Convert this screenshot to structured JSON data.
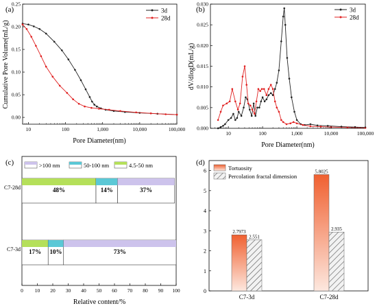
{
  "chart_data": [
    {
      "panel": "(a)",
      "type": "line",
      "xlabel": "Pore Diameter(nm)",
      "ylabel": "Cumulative Pore Volume(mL/g)",
      "xscale": "log",
      "xlim": [
        7,
        100000
      ],
      "ylim": [
        -0.015,
        0.25
      ],
      "xticks": [
        10,
        100,
        1000,
        10000,
        100000
      ],
      "xtick_labels": [
        "10",
        "100",
        "1,000",
        "10,000",
        "100,000"
      ],
      "yticks": [
        0.0,
        0.05,
        0.1,
        0.15,
        0.2,
        0.25
      ],
      "ytick_labels": [
        "0.00",
        "0.05",
        "0.10",
        "0.15",
        "0.20",
        "0.25"
      ],
      "legend_position": "top-right",
      "series": [
        {
          "name": "3d",
          "color": "#222222",
          "x": [
            7,
            10,
            14,
            20,
            30,
            50,
            80,
            120,
            180,
            260,
            350,
            450,
            520,
            600,
            700,
            900,
            1200,
            2000,
            4000,
            10000,
            30000,
            100000
          ],
          "y": [
            0.207,
            0.205,
            0.201,
            0.195,
            0.185,
            0.167,
            0.148,
            0.128,
            0.105,
            0.082,
            0.062,
            0.045,
            0.035,
            0.028,
            0.024,
            0.02,
            0.017,
            0.014,
            0.012,
            0.01,
            0.008,
            0.006
          ]
        },
        {
          "name": "28d",
          "color": "#e02020",
          "x": [
            7,
            9,
            12,
            16,
            22,
            30,
            45,
            70,
            110,
            160,
            230,
            330,
            500,
            800,
            1500,
            3000,
            8000,
            20000,
            50000,
            100000
          ],
          "y": [
            0.205,
            0.195,
            0.178,
            0.158,
            0.135,
            0.112,
            0.09,
            0.07,
            0.054,
            0.04,
            0.03,
            0.024,
            0.021,
            0.019,
            0.017,
            0.014,
            0.011,
            0.009,
            0.007,
            0.006
          ]
        }
      ]
    },
    {
      "panel": "(b)",
      "type": "line",
      "xlabel": "Pore Diameter(nm)",
      "ylabel": "dV/dlogD(mL/g)",
      "xscale": "log",
      "xlim": [
        3,
        100000
      ],
      "ylim": [
        0,
        0.03
      ],
      "xticks": [
        10,
        100,
        1000,
        10000,
        100000
      ],
      "xtick_labels": [
        "10",
        "100",
        "1,000",
        "10,000",
        "100,000"
      ],
      "yticks": [
        0,
        0.005,
        0.01,
        0.015,
        0.02,
        0.025,
        0.03
      ],
      "ytick_labels": [
        "0.000",
        "0.005",
        "0.010",
        "0.015",
        "0.020",
        "0.025",
        "0.030"
      ],
      "legend_position": "top-right",
      "series": [
        {
          "name": "3d",
          "color": "#222222",
          "x": [
            5,
            6,
            7,
            8,
            10,
            12,
            14,
            16,
            18,
            20,
            24,
            28,
            32,
            36,
            42,
            48,
            55,
            62,
            70,
            80,
            90,
            100,
            115,
            130,
            150,
            175,
            200,
            230,
            260,
            300,
            350,
            400,
            430,
            460,
            520,
            600,
            700,
            850,
            1000,
            1300,
            1700,
            2500,
            4000,
            8000,
            20000,
            50000,
            100000
          ],
          "y": [
            0.0,
            0.0003,
            0.0006,
            0.001,
            0.002,
            0.0025,
            0.0035,
            0.002,
            0.0025,
            0.004,
            0.003,
            0.005,
            0.0075,
            0.007,
            0.0045,
            0.003,
            0.006,
            0.003,
            0.005,
            0.005,
            0.0065,
            0.0075,
            0.0065,
            0.007,
            0.008,
            0.0085,
            0.008,
            0.0095,
            0.011,
            0.014,
            0.021,
            0.027,
            0.029,
            0.025,
            0.017,
            0.012,
            0.0075,
            0.004,
            0.002,
            0.001,
            0.0008,
            0.001,
            0.0007,
            0.0006,
            0.0004,
            0.0003,
            0.0002
          ]
        },
        {
          "name": "28d",
          "color": "#e02020",
          "x": [
            5,
            6,
            7,
            9,
            11,
            13,
            16,
            19,
            22,
            26,
            30,
            34,
            38,
            44,
            50,
            58,
            66,
            75,
            85,
            95,
            110,
            130,
            150,
            175,
            200,
            230,
            260,
            300,
            350,
            400,
            500,
            650,
            800,
            1000,
            1500,
            2500,
            5000,
            10000,
            30000,
            100000
          ],
          "y": [
            0.002,
            0.004,
            0.0055,
            0.006,
            0.0065,
            0.0095,
            0.0065,
            0.0045,
            0.006,
            0.0125,
            0.015,
            0.0105,
            0.006,
            0.0055,
            0.0045,
            0.0035,
            0.0065,
            0.0095,
            0.009,
            0.0095,
            0.0095,
            0.008,
            0.0095,
            0.0105,
            0.0095,
            0.0065,
            0.005,
            0.004,
            0.002,
            0.0015,
            0.001,
            0.0012,
            0.0015,
            0.0012,
            0.0008,
            0.0005,
            0.0004,
            0.0003,
            0.0002,
            0.0001
          ]
        }
      ]
    },
    {
      "panel": "(c)",
      "type": "bar",
      "orientation": "horizontal",
      "stacked": true,
      "xlabel": "Relative content/%",
      "xlim": [
        0,
        100
      ],
      "xticks": [
        0,
        10,
        20,
        30,
        40,
        50,
        60,
        70,
        80,
        90,
        100
      ],
      "categories": [
        "C7-28d",
        "C7-3d"
      ],
      "legend_position": "top",
      "series": [
        {
          "name": "4.5-50 nm",
          "color": "#b5e05a",
          "values": [
            48,
            17
          ],
          "labels": [
            "48%",
            "17%"
          ]
        },
        {
          "name": "50-100 nm",
          "color": "#5bc8d6",
          "values": [
            14,
            10
          ],
          "labels": [
            "14%",
            "10%"
          ]
        },
        {
          "name": ">100 nm",
          "color": "#cdc3ec",
          "values": [
            37,
            73
          ],
          "labels": [
            "37%",
            "73%"
          ]
        }
      ],
      "legend_order": [
        ">100 nm",
        "50-100 nm",
        "4.5-50 nm"
      ]
    },
    {
      "panel": "(d)",
      "type": "bar",
      "categories": [
        "C7-3d",
        "C7-28d"
      ],
      "ylim": [
        0,
        6.5
      ],
      "yticks": [
        0,
        1,
        2,
        3,
        4,
        5,
        6
      ],
      "legend_position": "top-left",
      "series": [
        {
          "name": "Tortuosity",
          "color": "#f07040",
          "label_color": "#e05a20",
          "values": [
            2.7973,
            5.8025
          ],
          "labels": [
            "2.7973",
            "5.8025"
          ]
        },
        {
          "name": "Percolation fractal dimension",
          "color": "#e0e0e0",
          "label_color": "#555555",
          "values": [
            2.551,
            2.935
          ],
          "labels": [
            "2.551",
            "2.935"
          ]
        }
      ]
    }
  ]
}
